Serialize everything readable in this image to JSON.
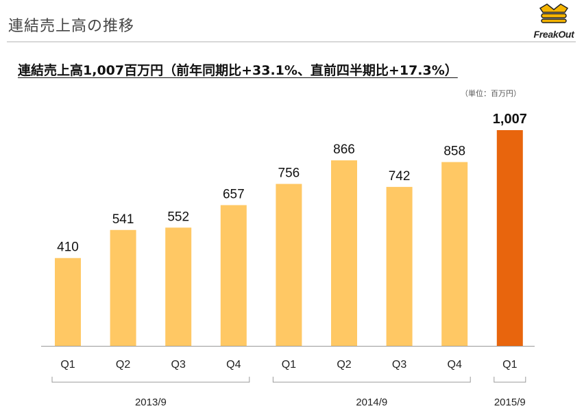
{
  "header": {
    "slide_title": "連結売上高の推移",
    "logo_text": "FreakOut"
  },
  "headline": "連結売上高1,007百万円（前年同期比+33.1%、直前四半期比+17.3%）",
  "unit_label": "（単位：百万円）",
  "colors": {
    "bar_default": "#FFC864",
    "bar_highlight": "#E8650D",
    "axis": "#999999"
  },
  "chart_data": {
    "type": "bar",
    "categories": [
      "Q1",
      "Q2",
      "Q3",
      "Q4",
      "Q1",
      "Q2",
      "Q3",
      "Q4",
      "Q1"
    ],
    "values": [
      410,
      541,
      552,
      657,
      756,
      866,
      742,
      858,
      1007
    ],
    "value_labels": [
      "410",
      "541",
      "552",
      "657",
      "756",
      "866",
      "742",
      "858",
      "1,007"
    ],
    "highlight_index": 8,
    "groups": [
      {
        "label": "2013/9",
        "start": 0,
        "end": 3
      },
      {
        "label": "2014/9",
        "start": 4,
        "end": 7
      },
      {
        "label": "2015/9",
        "start": 8,
        "end": 8
      }
    ],
    "ylim": [
      0,
      1100
    ],
    "grid": false
  }
}
